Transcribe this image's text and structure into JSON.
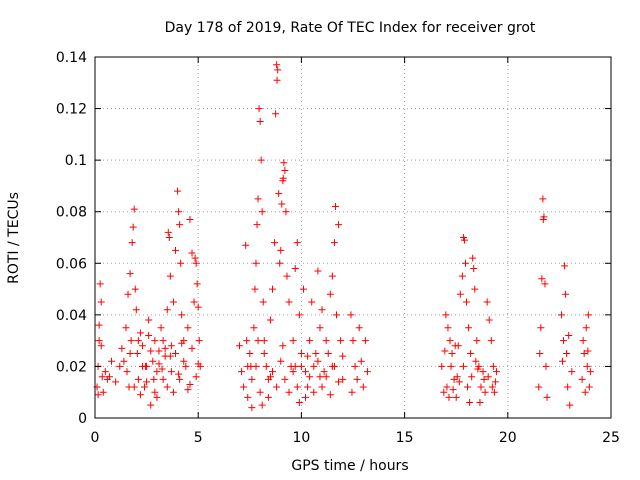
{
  "chart_data": {
    "type": "scatter",
    "title": "Day 178 of 2019, Rate Of TEC Index for receiver grot",
    "xlabel": "GPS time / hours",
    "ylabel": "ROTI / TECUs",
    "xlim": [
      0,
      25
    ],
    "ylim": [
      0,
      0.14
    ],
    "xticks": [
      0,
      5,
      10,
      15,
      20,
      25
    ],
    "xtick_labels": [
      "0",
      "5",
      "10",
      "15",
      "20",
      "25"
    ],
    "yticks": [
      0,
      0.02,
      0.04,
      0.06,
      0.08,
      0.1,
      0.12,
      0.14
    ],
    "ytick_labels": [
      "0",
      "0.02",
      "0.04",
      "0.06",
      "0.08",
      "0.1",
      "0.12",
      "0.14"
    ],
    "grid": true,
    "marker": "+",
    "series": [
      {
        "name": "ROTI",
        "color": "#ff0000",
        "points": [
          [
            0.1,
            0.012
          ],
          [
            0.15,
            0.02
          ],
          [
            0.2,
            0.03
          ],
          [
            0.25,
            0.052
          ],
          [
            0.3,
            0.045
          ],
          [
            0.35,
            0.016
          ],
          [
            0.4,
            0.01
          ],
          [
            0.5,
            0.018
          ],
          [
            0.6,
            0.015
          ],
          [
            0.7,
            0.016
          ],
          [
            0.8,
            0.022
          ],
          [
            0.2,
            0.036
          ],
          [
            0.3,
            0.028
          ],
          [
            0.15,
            0.009
          ],
          [
            1.0,
            0.014
          ],
          [
            1.2,
            0.02
          ],
          [
            1.3,
            0.027
          ],
          [
            1.4,
            0.022
          ],
          [
            1.5,
            0.035
          ],
          [
            1.55,
            0.018
          ],
          [
            1.6,
            0.048
          ],
          [
            1.65,
            0.012
          ],
          [
            1.7,
            0.056
          ],
          [
            1.75,
            0.03
          ],
          [
            1.8,
            0.068
          ],
          [
            1.85,
            0.074
          ],
          [
            1.9,
            0.081
          ],
          [
            1.95,
            0.05
          ],
          [
            2.0,
            0.042
          ],
          [
            2.05,
            0.025
          ],
          [
            2.1,
            0.015
          ],
          [
            2.2,
            0.033
          ],
          [
            2.3,
            0.028
          ],
          [
            2.4,
            0.012
          ],
          [
            2.5,
            0.02
          ],
          [
            2.6,
            0.038
          ],
          [
            2.7,
            0.005
          ],
          [
            2.8,
            0.022
          ],
          [
            2.9,
            0.03
          ],
          [
            3.0,
            0.018
          ],
          [
            3.1,
            0.026
          ],
          [
            3.2,
            0.035
          ],
          [
            3.3,
            0.015
          ],
          [
            3.4,
            0.024
          ],
          [
            3.5,
            0.042
          ],
          [
            3.55,
            0.072
          ],
          [
            3.6,
            0.07
          ],
          [
            3.65,
            0.055
          ],
          [
            3.7,
            0.028
          ],
          [
            3.8,
            0.045
          ],
          [
            3.9,
            0.065
          ],
          [
            4.0,
            0.088
          ],
          [
            4.05,
            0.08
          ],
          [
            4.1,
            0.075
          ],
          [
            4.15,
            0.06
          ],
          [
            4.2,
            0.04
          ],
          [
            4.3,
            0.03
          ],
          [
            4.4,
            0.02
          ],
          [
            4.5,
            0.035
          ],
          [
            4.6,
            0.077
          ],
          [
            4.7,
            0.064
          ],
          [
            4.8,
            0.045
          ],
          [
            4.85,
            0.062
          ],
          [
            4.9,
            0.06
          ],
          [
            4.95,
            0.052
          ],
          [
            5.0,
            0.043
          ],
          [
            5.05,
            0.03
          ],
          [
            5.1,
            0.02
          ],
          [
            1.7,
            0.025
          ],
          [
            1.9,
            0.012
          ],
          [
            2.1,
            0.03
          ],
          [
            2.3,
            0.02
          ],
          [
            2.5,
            0.014
          ],
          [
            2.7,
            0.026
          ],
          [
            2.9,
            0.01
          ],
          [
            3.1,
            0.021
          ],
          [
            3.3,
            0.03
          ],
          [
            3.5,
            0.012
          ],
          [
            3.7,
            0.018
          ],
          [
            3.9,
            0.025
          ],
          [
            4.1,
            0.015
          ],
          [
            4.3,
            0.022
          ],
          [
            4.5,
            0.011
          ],
          [
            4.7,
            0.027
          ],
          [
            4.9,
            0.016
          ],
          [
            2.2,
            0.009
          ],
          [
            2.6,
            0.032
          ],
          [
            3.0,
            0.008
          ],
          [
            3.4,
            0.027
          ],
          [
            3.8,
            0.01
          ],
          [
            4.2,
            0.029
          ],
          [
            4.6,
            0.013
          ],
          [
            5.0,
            0.021
          ],
          [
            2.45,
            0.02
          ],
          [
            2.85,
            0.015
          ],
          [
            3.25,
            0.019
          ],
          [
            3.65,
            0.024
          ],
          [
            4.05,
            0.017
          ],
          [
            7.0,
            0.028
          ],
          [
            7.1,
            0.018
          ],
          [
            7.2,
            0.012
          ],
          [
            7.3,
            0.067
          ],
          [
            7.35,
            0.03
          ],
          [
            7.4,
            0.008
          ],
          [
            7.5,
            0.025
          ],
          [
            7.55,
            0.02
          ],
          [
            7.6,
            0.004
          ],
          [
            7.7,
            0.035
          ],
          [
            7.75,
            0.05
          ],
          [
            7.8,
            0.06
          ],
          [
            7.85,
            0.075
          ],
          [
            7.9,
            0.085
          ],
          [
            7.95,
            0.12
          ],
          [
            8.0,
            0.115
          ],
          [
            8.05,
            0.1
          ],
          [
            8.1,
            0.08
          ],
          [
            8.15,
            0.045
          ],
          [
            8.2,
            0.03
          ],
          [
            8.3,
            0.02
          ],
          [
            8.4,
            0.015
          ],
          [
            8.5,
            0.038
          ],
          [
            8.6,
            0.05
          ],
          [
            8.7,
            0.068
          ],
          [
            8.75,
            0.118
          ],
          [
            8.8,
            0.137
          ],
          [
            8.82,
            0.131
          ],
          [
            8.85,
            0.135
          ],
          [
            8.9,
            0.087
          ],
          [
            8.95,
            0.06
          ],
          [
            9.0,
            0.065
          ],
          [
            9.05,
            0.083
          ],
          [
            9.1,
            0.092
          ],
          [
            9.12,
            0.093
          ],
          [
            9.15,
            0.099
          ],
          [
            9.2,
            0.096
          ],
          [
            9.25,
            0.08
          ],
          [
            9.3,
            0.055
          ],
          [
            9.4,
            0.045
          ],
          [
            9.5,
            0.02
          ],
          [
            9.6,
            0.03
          ],
          [
            9.7,
            0.058
          ],
          [
            9.8,
            0.068
          ],
          [
            9.9,
            0.04
          ],
          [
            10.0,
            0.025
          ],
          [
            10.1,
            0.05
          ],
          [
            10.2,
            0.018
          ],
          [
            10.3,
            0.012
          ],
          [
            10.4,
            0.03
          ],
          [
            10.5,
            0.045
          ],
          [
            10.6,
            0.02
          ],
          [
            10.7,
            0.025
          ],
          [
            10.8,
            0.057
          ],
          [
            10.9,
            0.035
          ],
          [
            11.0,
            0.042
          ],
          [
            11.1,
            0.018
          ],
          [
            11.2,
            0.03
          ],
          [
            11.3,
            0.025
          ],
          [
            11.4,
            0.048
          ],
          [
            11.5,
            0.055
          ],
          [
            11.6,
            0.068
          ],
          [
            11.65,
            0.082
          ],
          [
            11.7,
            0.04
          ],
          [
            11.8,
            0.075
          ],
          [
            11.9,
            0.03
          ],
          [
            12.0,
            0.015
          ],
          [
            7.6,
            0.015
          ],
          [
            7.8,
            0.02
          ],
          [
            8.0,
            0.01
          ],
          [
            8.2,
            0.025
          ],
          [
            8.4,
            0.008
          ],
          [
            8.6,
            0.018
          ],
          [
            8.8,
            0.012
          ],
          [
            9.0,
            0.022
          ],
          [
            9.2,
            0.015
          ],
          [
            9.4,
            0.01
          ],
          [
            9.6,
            0.018
          ],
          [
            9.8,
            0.012
          ],
          [
            10.0,
            0.02
          ],
          [
            10.2,
            0.008
          ],
          [
            10.4,
            0.016
          ],
          [
            10.6,
            0.01
          ],
          [
            10.8,
            0.022
          ],
          [
            11.0,
            0.012
          ],
          [
            11.2,
            0.016
          ],
          [
            11.4,
            0.009
          ],
          [
            11.6,
            0.02
          ],
          [
            11.8,
            0.014
          ],
          [
            12.0,
            0.024
          ],
          [
            7.4,
            0.02
          ],
          [
            7.9,
            0.03
          ],
          [
            8.5,
            0.016
          ],
          [
            9.1,
            0.028
          ],
          [
            9.7,
            0.02
          ],
          [
            10.3,
            0.024
          ],
          [
            10.9,
            0.016
          ],
          [
            11.5,
            0.02
          ],
          [
            8.1,
            0.005
          ],
          [
            9.9,
            0.006
          ],
          [
            12.4,
            0.04
          ],
          [
            12.5,
            0.03
          ],
          [
            12.6,
            0.02
          ],
          [
            12.7,
            0.015
          ],
          [
            12.8,
            0.035
          ],
          [
            12.9,
            0.022
          ],
          [
            13.0,
            0.012
          ],
          [
            13.1,
            0.03
          ],
          [
            13.2,
            0.018
          ],
          [
            12.45,
            0.01
          ],
          [
            16.8,
            0.02
          ],
          [
            16.9,
            0.01
          ],
          [
            17.0,
            0.04
          ],
          [
            17.1,
            0.035
          ],
          [
            17.2,
            0.03
          ],
          [
            17.3,
            0.025
          ],
          [
            17.4,
            0.015
          ],
          [
            17.5,
            0.008
          ],
          [
            17.6,
            0.028
          ],
          [
            17.7,
            0.048
          ],
          [
            17.8,
            0.055
          ],
          [
            17.85,
            0.07
          ],
          [
            17.9,
            0.069
          ],
          [
            17.95,
            0.06
          ],
          [
            18.0,
            0.045
          ],
          [
            18.1,
            0.035
          ],
          [
            18.2,
            0.025
          ],
          [
            18.3,
            0.062
          ],
          [
            18.35,
            0.058
          ],
          [
            18.4,
            0.05
          ],
          [
            18.5,
            0.03
          ],
          [
            18.6,
            0.02
          ],
          [
            18.7,
            0.012
          ],
          [
            18.8,
            0.018
          ],
          [
            18.9,
            0.01
          ],
          [
            19.0,
            0.045
          ],
          [
            19.1,
            0.038
          ],
          [
            19.2,
            0.03
          ],
          [
            19.3,
            0.02
          ],
          [
            19.4,
            0.014
          ],
          [
            17.05,
            0.012
          ],
          [
            17.25,
            0.02
          ],
          [
            17.45,
            0.028
          ],
          [
            17.65,
            0.014
          ],
          [
            17.85,
            0.02
          ],
          [
            18.05,
            0.012
          ],
          [
            18.25,
            0.016
          ],
          [
            18.45,
            0.022
          ],
          [
            18.65,
            0.006
          ],
          [
            18.85,
            0.015
          ],
          [
            19.05,
            0.016
          ],
          [
            19.25,
            0.012
          ],
          [
            19.45,
            0.018
          ],
          [
            17.15,
            0.008
          ],
          [
            18.15,
            0.006
          ],
          [
            19.35,
            0.01
          ],
          [
            17.55,
            0.016
          ],
          [
            18.55,
            0.019
          ],
          [
            16.95,
            0.026
          ],
          [
            17.35,
            0.011
          ],
          [
            21.5,
            0.012
          ],
          [
            21.55,
            0.025
          ],
          [
            21.6,
            0.035
          ],
          [
            21.65,
            0.054
          ],
          [
            21.7,
            0.085
          ],
          [
            21.72,
            0.077
          ],
          [
            21.75,
            0.078
          ],
          [
            21.8,
            0.052
          ],
          [
            21.85,
            0.02
          ],
          [
            21.9,
            0.008
          ],
          [
            22.6,
            0.04
          ],
          [
            22.7,
            0.03
          ],
          [
            22.75,
            0.059
          ],
          [
            22.8,
            0.048
          ],
          [
            22.85,
            0.025
          ],
          [
            22.9,
            0.012
          ],
          [
            23.0,
            0.005
          ],
          [
            23.1,
            0.018
          ],
          [
            22.65,
            0.022
          ],
          [
            22.95,
            0.032
          ],
          [
            23.6,
            0.015
          ],
          [
            23.7,
            0.025
          ],
          [
            23.8,
            0.035
          ],
          [
            23.85,
            0.02
          ],
          [
            23.9,
            0.04
          ],
          [
            23.95,
            0.012
          ],
          [
            24.0,
            0.018
          ],
          [
            23.75,
            0.01
          ],
          [
            23.65,
            0.03
          ],
          [
            23.88,
            0.026
          ]
        ]
      }
    ]
  }
}
